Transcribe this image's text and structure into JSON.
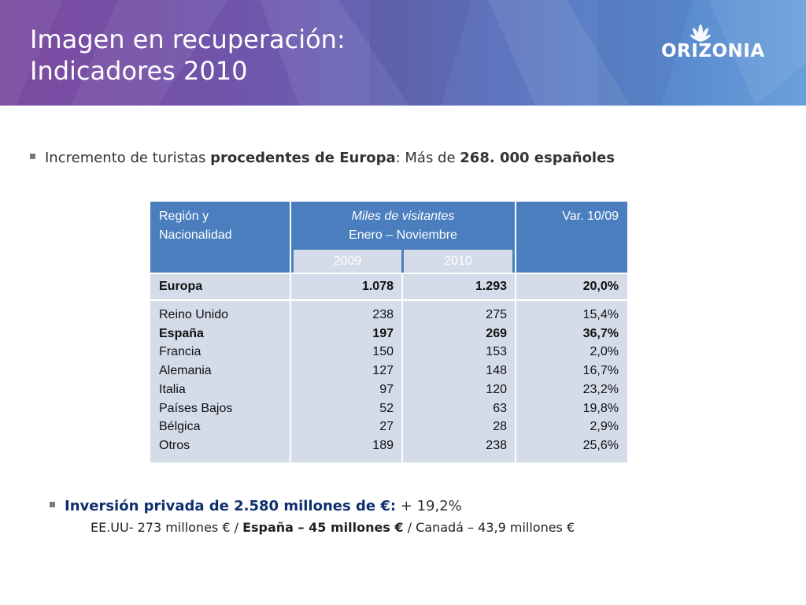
{
  "header": {
    "title_line1": "Imagen en recuperación:",
    "title_line2": "Indicadores 2010",
    "logo_text": "ORIZONIA",
    "logo_icon": "lotus-flower-icon"
  },
  "bullet1": {
    "prefix": "Incremento de turistas ",
    "bold1": "procedentes de Europa",
    "mid": ":  Más de ",
    "bold2": "268. 000 españoles"
  },
  "table": {
    "h_region_1": "Región y",
    "h_region_2": "Nacionalidad",
    "h_miles_1": "Miles de visitantes",
    "h_miles_2": "Enero – Noviembre",
    "h_var": "Var. 10/09",
    "year1": "2009",
    "year2": "2010",
    "europa": {
      "label": "Europa",
      "v2009": "1.078",
      "v2010": "1.293",
      "var": "20,0%"
    },
    "countries": [
      "Reino Unido",
      "España",
      "Francia",
      "Alemania",
      "Italia",
      "Países Bajos",
      "Bélgica",
      "Otros"
    ],
    "v2009": [
      "238",
      "197",
      "150",
      "127",
      "97",
      "52",
      "27",
      "189"
    ],
    "v2010": [
      "275",
      "269",
      "153",
      "148",
      "120",
      "63",
      "28",
      "238"
    ],
    "var": [
      "15,4%",
      "36,7%",
      "2,0%",
      "16,7%",
      "23,2%",
      "19,8%",
      "2,9%",
      "25,6%"
    ],
    "bold_row_index": 1
  },
  "bullet2": {
    "bold": "Inversión privada de 2.580 millones de €:",
    "rest": " + 19,2%"
  },
  "line3": {
    "part1": "EE.UU-  273 millones € / ",
    "bold": "España – 45 millones €",
    "part2": " / Canadá – 43,9 millones €"
  },
  "colors": {
    "header_start": "#7c4aa0",
    "header_end": "#6aa0da",
    "table_header": "#4a7ebf",
    "table_body": "#d4dbe9"
  }
}
